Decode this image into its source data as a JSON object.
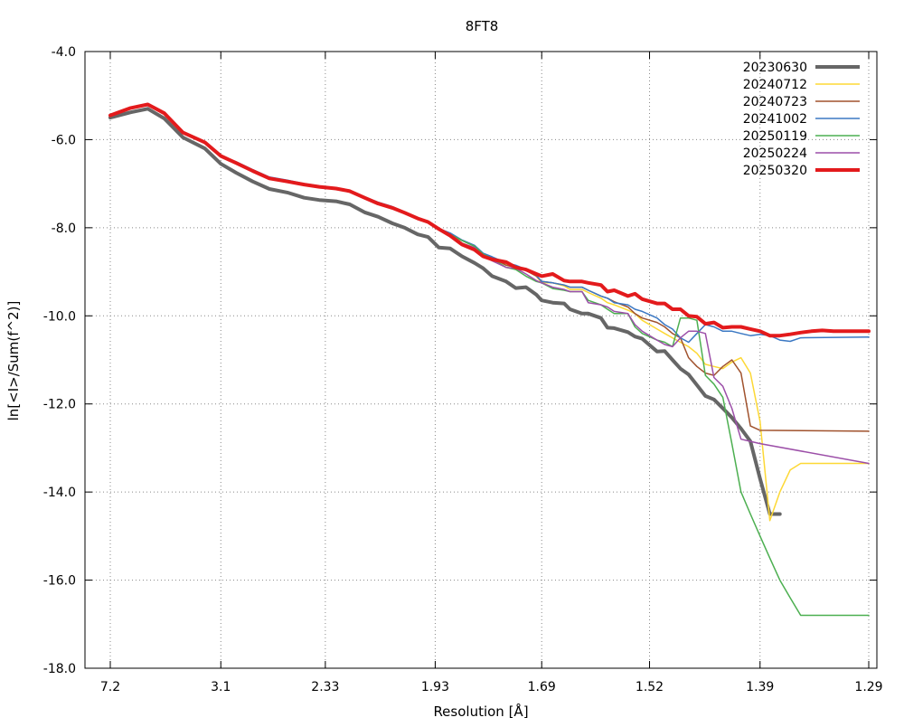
{
  "chart_data": {
    "type": "line",
    "title": "8FT8",
    "xlabel": "Resolution [Å]",
    "ylabel": "ln[<I>/Sum(f^2)]",
    "x_axis": {
      "scale": "inverse-square resolution (1/d^2)",
      "tick_labels": [
        "7.2",
        "3.1",
        "2.33",
        "1.93",
        "1.69",
        "1.52",
        "1.39",
        "1.29"
      ],
      "range": [
        7.2,
        1.29
      ]
    },
    "ylim": [
      -18.0,
      -4.0
    ],
    "y_ticks": [
      "-4.0",
      "-6.0",
      "-8.0",
      "-10.0",
      "-12.0",
      "-14.0",
      "-16.0",
      "-18.0"
    ],
    "grid": true,
    "legend_position": "top-right",
    "series": [
      {
        "name": "20230630",
        "color": "#666666",
        "width": 4,
        "x": [
          7.2,
          5.35,
          4.56,
          4.06,
          3.65,
          3.3,
          3.1,
          2.94,
          2.79,
          2.66,
          2.54,
          2.44,
          2.36,
          2.28,
          2.22,
          2.16,
          2.11,
          2.06,
          2.02,
          1.98,
          1.95,
          1.92,
          1.89,
          1.86,
          1.83,
          1.81,
          1.79,
          1.76,
          1.74,
          1.72,
          1.7,
          1.69,
          1.67,
          1.65,
          1.64,
          1.62,
          1.61,
          1.59,
          1.58,
          1.57,
          1.55,
          1.54,
          1.53,
          1.51,
          1.5,
          1.49,
          1.48,
          1.47,
          1.46,
          1.45,
          1.44,
          1.43,
          1.42,
          1.41,
          1.4,
          1.39,
          1.38,
          1.37
        ],
        "y": [
          -5.5,
          -5.38,
          -5.3,
          -5.52,
          -5.95,
          -6.2,
          -6.55,
          -6.75,
          -6.95,
          -7.12,
          -7.2,
          -7.32,
          -7.37,
          -7.4,
          -7.47,
          -7.65,
          -7.75,
          -7.9,
          -8.0,
          -8.15,
          -8.21,
          -8.45,
          -8.47,
          -8.65,
          -8.8,
          -8.92,
          -9.1,
          -9.22,
          -9.37,
          -9.35,
          -9.52,
          -9.65,
          -9.7,
          -9.72,
          -9.85,
          -9.95,
          -9.95,
          -10.05,
          -10.27,
          -10.28,
          -10.37,
          -10.47,
          -10.52,
          -10.81,
          -10.8,
          -11.0,
          -11.2,
          -11.33,
          -11.57,
          -11.82,
          -11.9,
          -12.1,
          -12.31,
          -12.56,
          -12.85,
          -13.7,
          -14.5,
          -14.5
        ]
      },
      {
        "name": "20240712",
        "color": "#fdd835",
        "width": 1.5,
        "x": [
          7.2,
          5.35,
          4.56,
          4.06,
          3.65,
          3.3,
          3.1,
          2.94,
          2.79,
          2.66,
          2.54,
          2.44,
          2.36,
          2.28,
          2.22,
          2.16,
          2.11,
          2.06,
          2.02,
          1.98,
          1.95,
          1.92,
          1.89,
          1.86,
          1.83,
          1.81,
          1.79,
          1.76,
          1.74,
          1.72,
          1.7,
          1.69,
          1.67,
          1.65,
          1.64,
          1.62,
          1.61,
          1.59,
          1.58,
          1.57,
          1.55,
          1.54,
          1.53,
          1.51,
          1.5,
          1.49,
          1.48,
          1.47,
          1.46,
          1.45,
          1.44,
          1.43,
          1.42,
          1.41,
          1.4,
          1.39,
          1.38,
          1.37,
          1.36,
          1.35,
          1.29
        ],
        "y": [
          -5.45,
          -5.28,
          -5.2,
          -5.4,
          -5.84,
          -6.06,
          -6.37,
          -6.53,
          -6.71,
          -6.88,
          -6.95,
          -7.02,
          -7.07,
          -7.11,
          -7.17,
          -7.32,
          -7.45,
          -7.55,
          -7.66,
          -7.79,
          -7.87,
          -8.03,
          -8.15,
          -8.29,
          -8.42,
          -8.6,
          -8.68,
          -8.85,
          -8.9,
          -8.97,
          -9.1,
          -9.25,
          -9.25,
          -9.32,
          -9.4,
          -9.4,
          -9.47,
          -9.6,
          -9.7,
          -9.75,
          -9.87,
          -9.95,
          -10.1,
          -10.3,
          -10.4,
          -10.5,
          -10.6,
          -10.7,
          -10.85,
          -11.1,
          -11.15,
          -11.2,
          -11.05,
          -10.95,
          -11.3,
          -12.4,
          -14.65,
          -14.0,
          -13.5,
          -13.35,
          -13.35
        ]
      },
      {
        "name": "20240723",
        "color": "#a0522d",
        "width": 1.5,
        "x": [
          7.2,
          5.35,
          4.56,
          4.06,
          3.65,
          3.3,
          3.1,
          2.94,
          2.79,
          2.66,
          2.54,
          2.44,
          2.36,
          2.28,
          2.22,
          2.16,
          2.11,
          2.06,
          2.02,
          1.98,
          1.95,
          1.92,
          1.89,
          1.86,
          1.83,
          1.81,
          1.79,
          1.76,
          1.74,
          1.72,
          1.7,
          1.69,
          1.67,
          1.65,
          1.64,
          1.62,
          1.61,
          1.59,
          1.58,
          1.57,
          1.55,
          1.54,
          1.53,
          1.51,
          1.5,
          1.49,
          1.48,
          1.47,
          1.46,
          1.45,
          1.44,
          1.43,
          1.42,
          1.41,
          1.4,
          1.39,
          1.29
        ],
        "y": [
          -5.45,
          -5.28,
          -5.2,
          -5.4,
          -5.84,
          -6.06,
          -6.37,
          -6.53,
          -6.71,
          -6.88,
          -6.95,
          -7.02,
          -7.07,
          -7.11,
          -7.17,
          -7.32,
          -7.45,
          -7.55,
          -7.66,
          -7.79,
          -7.87,
          -8.03,
          -8.15,
          -8.29,
          -8.42,
          -8.6,
          -8.68,
          -8.85,
          -8.9,
          -8.97,
          -9.1,
          -9.22,
          -9.25,
          -9.3,
          -9.35,
          -9.35,
          -9.42,
          -9.55,
          -9.6,
          -9.68,
          -9.8,
          -9.95,
          -10.05,
          -10.15,
          -10.25,
          -10.4,
          -10.5,
          -10.95,
          -11.15,
          -11.3,
          -11.35,
          -11.15,
          -11.0,
          -11.3,
          -12.5,
          -12.6,
          -12.62
        ]
      },
      {
        "name": "20241002",
        "color": "#3b78c3",
        "width": 1.5,
        "x": [
          7.2,
          5.35,
          4.56,
          4.06,
          3.65,
          3.3,
          3.1,
          2.94,
          2.79,
          2.66,
          2.54,
          2.44,
          2.36,
          2.28,
          2.22,
          2.16,
          2.11,
          2.06,
          2.02,
          1.98,
          1.95,
          1.92,
          1.89,
          1.86,
          1.83,
          1.81,
          1.79,
          1.76,
          1.74,
          1.72,
          1.7,
          1.69,
          1.67,
          1.65,
          1.64,
          1.62,
          1.61,
          1.59,
          1.58,
          1.57,
          1.55,
          1.54,
          1.53,
          1.51,
          1.5,
          1.49,
          1.48,
          1.47,
          1.46,
          1.45,
          1.44,
          1.43,
          1.42,
          1.41,
          1.4,
          1.39,
          1.38,
          1.37,
          1.36,
          1.35,
          1.29
        ],
        "y": [
          -5.45,
          -5.28,
          -5.2,
          -5.4,
          -5.84,
          -6.06,
          -6.37,
          -6.5,
          -6.68,
          -6.85,
          -6.92,
          -7.0,
          -7.05,
          -7.1,
          -7.15,
          -7.3,
          -7.42,
          -7.52,
          -7.65,
          -7.77,
          -7.86,
          -8.02,
          -8.12,
          -8.28,
          -8.4,
          -8.58,
          -8.66,
          -8.8,
          -8.85,
          -8.95,
          -9.08,
          -9.22,
          -9.25,
          -9.3,
          -9.35,
          -9.35,
          -9.42,
          -9.55,
          -9.6,
          -9.7,
          -9.75,
          -9.85,
          -9.9,
          -10.05,
          -10.2,
          -10.3,
          -10.5,
          -10.6,
          -10.4,
          -10.2,
          -10.25,
          -10.35,
          -10.35,
          -10.4,
          -10.45,
          -10.42,
          -10.45,
          -10.55,
          -10.58,
          -10.5,
          -10.48
        ]
      },
      {
        "name": "20250119",
        "color": "#4caf50",
        "width": 1.5,
        "x": [
          7.2,
          5.35,
          4.56,
          4.06,
          3.65,
          3.3,
          3.1,
          2.94,
          2.79,
          2.66,
          2.54,
          2.44,
          2.36,
          2.28,
          2.22,
          2.16,
          2.11,
          2.06,
          2.02,
          1.98,
          1.95,
          1.92,
          1.89,
          1.86,
          1.83,
          1.81,
          1.79,
          1.76,
          1.74,
          1.72,
          1.7,
          1.69,
          1.67,
          1.65,
          1.64,
          1.62,
          1.61,
          1.59,
          1.58,
          1.57,
          1.55,
          1.54,
          1.53,
          1.51,
          1.5,
          1.49,
          1.48,
          1.47,
          1.46,
          1.45,
          1.44,
          1.43,
          1.42,
          1.41,
          1.4,
          1.39,
          1.38,
          1.37,
          1.36,
          1.35,
          1.32,
          1.29
        ],
        "y": [
          -5.45,
          -5.28,
          -5.2,
          -5.4,
          -5.84,
          -6.06,
          -6.37,
          -6.53,
          -6.71,
          -6.88,
          -6.95,
          -7.02,
          -7.07,
          -7.11,
          -7.17,
          -7.32,
          -7.45,
          -7.55,
          -7.66,
          -7.79,
          -7.87,
          -8.03,
          -8.15,
          -8.29,
          -8.42,
          -8.6,
          -8.7,
          -8.9,
          -8.95,
          -9.1,
          -9.22,
          -9.25,
          -9.38,
          -9.42,
          -9.45,
          -9.45,
          -9.65,
          -9.75,
          -9.85,
          -9.95,
          -9.95,
          -10.25,
          -10.4,
          -10.55,
          -10.6,
          -10.7,
          -10.05,
          -10.05,
          -10.1,
          -11.35,
          -11.55,
          -11.85,
          -12.9,
          -14.0,
          -14.5,
          -15.0,
          -15.5,
          -16.0,
          -16.4,
          -16.8,
          -16.8,
          -16.8
        ]
      },
      {
        "name": "20250224",
        "color": "#9c4fa8",
        "width": 1.5,
        "x": [
          7.2,
          5.35,
          4.56,
          4.06,
          3.65,
          3.3,
          3.1,
          2.94,
          2.79,
          2.66,
          2.54,
          2.44,
          2.36,
          2.28,
          2.22,
          2.16,
          2.11,
          2.06,
          2.02,
          1.98,
          1.95,
          1.92,
          1.89,
          1.86,
          1.83,
          1.81,
          1.79,
          1.76,
          1.74,
          1.72,
          1.7,
          1.69,
          1.67,
          1.65,
          1.64,
          1.62,
          1.61,
          1.59,
          1.58,
          1.57,
          1.55,
          1.54,
          1.53,
          1.51,
          1.5,
          1.49,
          1.48,
          1.47,
          1.46,
          1.45,
          1.44,
          1.43,
          1.42,
          1.41,
          1.4,
          1.39,
          1.29
        ],
        "y": [
          -5.45,
          -5.28,
          -5.2,
          -5.4,
          -5.84,
          -6.06,
          -6.37,
          -6.53,
          -6.71,
          -6.88,
          -6.95,
          -7.02,
          -7.07,
          -7.11,
          -7.17,
          -7.32,
          -7.45,
          -7.55,
          -7.66,
          -7.79,
          -7.87,
          -8.05,
          -8.15,
          -8.35,
          -8.45,
          -8.65,
          -8.75,
          -8.9,
          -8.92,
          -9.05,
          -9.2,
          -9.25,
          -9.35,
          -9.4,
          -9.45,
          -9.45,
          -9.7,
          -9.75,
          -9.8,
          -9.9,
          -9.95,
          -10.2,
          -10.35,
          -10.55,
          -10.65,
          -10.7,
          -10.5,
          -10.35,
          -10.35,
          -10.4,
          -11.4,
          -11.6,
          -12.1,
          -12.8,
          -12.85,
          -12.9,
          -13.35
        ]
      },
      {
        "name": "20250320",
        "color": "#e31a1c",
        "width": 4,
        "x": [
          7.2,
          5.35,
          4.56,
          4.06,
          3.65,
          3.3,
          3.1,
          2.94,
          2.79,
          2.66,
          2.54,
          2.44,
          2.36,
          2.28,
          2.22,
          2.16,
          2.11,
          2.06,
          2.02,
          1.98,
          1.95,
          1.92,
          1.89,
          1.86,
          1.83,
          1.81,
          1.79,
          1.76,
          1.74,
          1.72,
          1.7,
          1.69,
          1.67,
          1.65,
          1.64,
          1.62,
          1.61,
          1.59,
          1.58,
          1.57,
          1.55,
          1.54,
          1.53,
          1.51,
          1.5,
          1.49,
          1.48,
          1.47,
          1.46,
          1.45,
          1.44,
          1.43,
          1.42,
          1.41,
          1.4,
          1.39,
          1.38,
          1.37,
          1.36,
          1.35,
          1.34,
          1.33,
          1.32,
          1.31,
          1.3,
          1.29
        ],
        "y": [
          -5.45,
          -5.28,
          -5.2,
          -5.4,
          -5.84,
          -6.06,
          -6.37,
          -6.53,
          -6.71,
          -6.88,
          -6.95,
          -7.02,
          -7.07,
          -7.11,
          -7.17,
          -7.32,
          -7.45,
          -7.55,
          -7.66,
          -7.79,
          -7.87,
          -8.03,
          -8.18,
          -8.38,
          -8.5,
          -8.65,
          -8.72,
          -8.78,
          -8.9,
          -8.95,
          -9.05,
          -9.1,
          -9.05,
          -9.2,
          -9.22,
          -9.22,
          -9.25,
          -9.3,
          -9.45,
          -9.42,
          -9.55,
          -9.5,
          -9.62,
          -9.72,
          -9.72,
          -9.85,
          -9.85,
          -10.0,
          -10.02,
          -10.18,
          -10.15,
          -10.27,
          -10.25,
          -10.25,
          -10.3,
          -10.35,
          -10.45,
          -10.45,
          -10.42,
          -10.38,
          -10.35,
          -10.33,
          -10.35,
          -10.35,
          -10.35,
          -10.35
        ]
      }
    ]
  }
}
